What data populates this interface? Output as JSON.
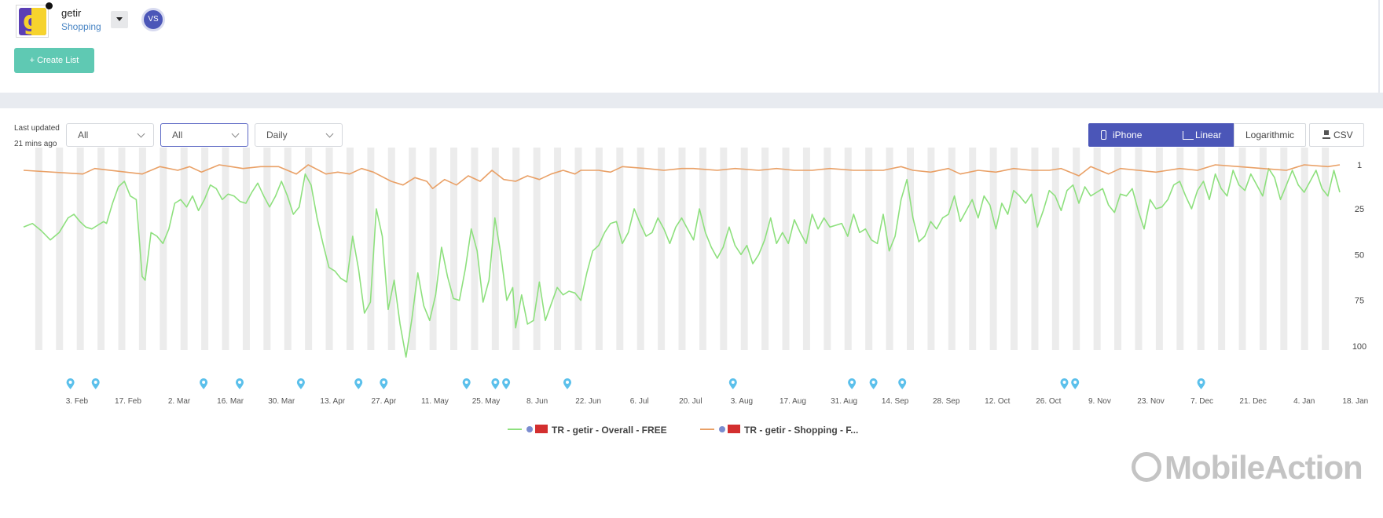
{
  "app": {
    "name": "getir",
    "category": "Shopping",
    "vs_label": "VS",
    "create_list_label": "+ Create List"
  },
  "filters": {
    "last_updated_label": "Last updated",
    "last_updated_value": "21 mins ago",
    "select_1": "All",
    "select_2": "All",
    "select_3": "Daily"
  },
  "controls": {
    "device_label": "iPhone",
    "linear_label": "Linear",
    "log_label": "Logarithmic",
    "csv_label": "CSV"
  },
  "colors": {
    "accent": "#4b56b8",
    "create": "#5fc9b3",
    "overall_line": "#8ee07e",
    "shopping_line": "#e9a066",
    "weekend_band": "#ececec",
    "marker": "#5bc0eb"
  },
  "brand": "MobileAction",
  "chart_data": {
    "type": "line",
    "y_reversed": true,
    "ylim": [
      1,
      125
    ],
    "y_ticks": [
      1,
      25,
      50,
      75,
      100
    ],
    "x_tick_labels": [
      "3. Feb",
      "17. Feb",
      "2. Mar",
      "16. Mar",
      "30. Mar",
      "13. Apr",
      "27. Apr",
      "11. May",
      "25. May",
      "8. Jun",
      "22. Jun",
      "6. Jul",
      "20. Jul",
      "3. Aug",
      "17. Aug",
      "31. Aug",
      "14. Sep",
      "28. Sep",
      "12. Oct",
      "26. Oct",
      "9. Nov",
      "23. Nov",
      "7. Dec",
      "21. Dec",
      "4. Jan",
      "18. Jan"
    ],
    "start_date": "2020-01-27",
    "n_days": 360,
    "grid": false,
    "legend_position": "bottom",
    "annotation_days": [
      13,
      20,
      50,
      60,
      77,
      93,
      100,
      123,
      131,
      134,
      151,
      197,
      230,
      236,
      244,
      289,
      292,
      327
    ],
    "series": [
      {
        "name": "TR - getir - Overall - FREE",
        "key_points": [
          [
            0,
            35
          ],
          [
            3,
            33
          ],
          [
            6,
            37
          ],
          [
            9,
            42
          ],
          [
            12,
            38
          ],
          [
            15,
            30
          ],
          [
            17,
            28
          ],
          [
            19,
            32
          ],
          [
            21,
            35
          ],
          [
            23,
            36
          ],
          [
            25,
            34
          ],
          [
            27,
            32
          ],
          [
            28,
            33
          ],
          [
            30,
            22
          ],
          [
            32,
            13
          ],
          [
            34,
            10
          ],
          [
            36,
            18
          ],
          [
            38,
            20
          ],
          [
            40,
            62
          ],
          [
            41,
            64
          ],
          [
            43,
            38
          ],
          [
            45,
            40
          ],
          [
            47,
            44
          ],
          [
            49,
            36
          ],
          [
            51,
            22
          ],
          [
            53,
            20
          ],
          [
            55,
            24
          ],
          [
            57,
            18
          ],
          [
            59,
            26
          ],
          [
            61,
            20
          ],
          [
            63,
            12
          ],
          [
            65,
            14
          ],
          [
            67,
            20
          ],
          [
            69,
            17
          ],
          [
            71,
            18
          ],
          [
            73,
            21
          ],
          [
            75,
            22
          ],
          [
            77,
            16
          ],
          [
            79,
            11
          ],
          [
            81,
            18
          ],
          [
            83,
            24
          ],
          [
            85,
            18
          ],
          [
            87,
            10
          ],
          [
            89,
            18
          ],
          [
            91,
            28
          ],
          [
            93,
            24
          ],
          [
            95,
            6
          ],
          [
            97,
            12
          ],
          [
            99,
            30
          ],
          [
            101,
            44
          ],
          [
            103,
            57
          ],
          [
            105,
            59
          ],
          [
            107,
            63
          ],
          [
            109,
            65
          ],
          [
            111,
            40
          ],
          [
            113,
            58
          ],
          [
            115,
            82
          ],
          [
            117,
            76
          ],
          [
            119,
            25
          ],
          [
            121,
            40
          ],
          [
            123,
            80
          ],
          [
            125,
            64
          ],
          [
            127,
            88
          ],
          [
            129,
            106
          ],
          [
            131,
            85
          ],
          [
            133,
            60
          ],
          [
            135,
            78
          ],
          [
            137,
            86
          ],
          [
            139,
            72
          ],
          [
            141,
            46
          ],
          [
            143,
            62
          ],
          [
            145,
            74
          ],
          [
            147,
            75
          ],
          [
            149,
            58
          ],
          [
            151,
            36
          ],
          [
            153,
            48
          ],
          [
            155,
            76
          ],
          [
            157,
            64
          ],
          [
            159,
            30
          ],
          [
            161,
            50
          ],
          [
            163,
            75
          ],
          [
            165,
            68
          ],
          [
            166,
            90
          ],
          [
            168,
            72
          ],
          [
            170,
            88
          ],
          [
            172,
            86
          ],
          [
            174,
            65
          ],
          [
            176,
            86
          ],
          [
            178,
            77
          ],
          [
            180,
            68
          ],
          [
            182,
            72
          ],
          [
            184,
            70
          ],
          [
            186,
            71
          ],
          [
            188,
            75
          ],
          [
            190,
            60
          ],
          [
            192,
            48
          ],
          [
            194,
            45
          ],
          [
            196,
            38
          ],
          [
            198,
            33
          ],
          [
            200,
            32
          ],
          [
            202,
            44
          ],
          [
            204,
            38
          ],
          [
            206,
            25
          ],
          [
            208,
            33
          ],
          [
            210,
            40
          ],
          [
            212,
            38
          ],
          [
            214,
            30
          ],
          [
            216,
            36
          ],
          [
            218,
            44
          ],
          [
            220,
            35
          ],
          [
            222,
            30
          ],
          [
            224,
            36
          ],
          [
            226,
            42
          ],
          [
            228,
            25
          ],
          [
            230,
            38
          ],
          [
            232,
            46
          ],
          [
            234,
            52
          ],
          [
            236,
            46
          ],
          [
            238,
            35
          ],
          [
            240,
            45
          ],
          [
            242,
            50
          ],
          [
            244,
            45
          ],
          [
            246,
            55
          ],
          [
            248,
            50
          ],
          [
            250,
            42
          ],
          [
            252,
            30
          ],
          [
            254,
            44
          ],
          [
            256,
            38
          ],
          [
            258,
            44
          ],
          [
            260,
            31
          ],
          [
            262,
            38
          ],
          [
            264,
            44
          ],
          [
            266,
            28
          ],
          [
            268,
            36
          ],
          [
            270,
            30
          ],
          [
            272,
            35
          ],
          [
            274,
            34
          ],
          [
            276,
            33
          ],
          [
            278,
            40
          ],
          [
            280,
            28
          ],
          [
            282,
            38
          ],
          [
            284,
            36
          ],
          [
            286,
            42
          ],
          [
            288,
            44
          ],
          [
            290,
            28
          ],
          [
            292,
            48
          ],
          [
            294,
            40
          ],
          [
            296,
            20
          ],
          [
            298,
            9
          ],
          [
            300,
            30
          ],
          [
            302,
            43
          ],
          [
            304,
            40
          ],
          [
            306,
            32
          ],
          [
            308,
            36
          ],
          [
            310,
            30
          ],
          [
            312,
            28
          ],
          [
            314,
            18
          ],
          [
            316,
            32
          ],
          [
            318,
            26
          ],
          [
            320,
            20
          ],
          [
            322,
            30
          ],
          [
            324,
            18
          ],
          [
            326,
            23
          ],
          [
            328,
            36
          ],
          [
            330,
            22
          ],
          [
            332,
            28
          ],
          [
            334,
            15
          ],
          [
            336,
            18
          ],
          [
            338,
            22
          ],
          [
            340,
            17
          ],
          [
            342,
            35
          ],
          [
            344,
            26
          ],
          [
            346,
            15
          ],
          [
            348,
            18
          ],
          [
            350,
            26
          ],
          [
            352,
            15
          ],
          [
            354,
            12
          ],
          [
            356,
            22
          ],
          [
            358,
            13
          ],
          [
            360,
            18
          ],
          [
            362,
            16
          ],
          [
            364,
            14
          ],
          [
            366,
            23
          ],
          [
            368,
            27
          ],
          [
            370,
            17
          ],
          [
            372,
            18
          ],
          [
            374,
            14
          ],
          [
            376,
            26
          ],
          [
            378,
            36
          ],
          [
            380,
            20
          ],
          [
            382,
            25
          ],
          [
            384,
            24
          ],
          [
            386,
            20
          ],
          [
            388,
            12
          ],
          [
            390,
            10
          ],
          [
            392,
            18
          ],
          [
            394,
            25
          ],
          [
            396,
            15
          ],
          [
            398,
            10
          ],
          [
            400,
            20
          ],
          [
            402,
            6
          ],
          [
            404,
            14
          ],
          [
            406,
            18
          ],
          [
            408,
            4
          ],
          [
            410,
            12
          ],
          [
            412,
            15
          ],
          [
            414,
            6
          ],
          [
            416,
            12
          ],
          [
            418,
            18
          ],
          [
            420,
            3
          ],
          [
            422,
            8
          ],
          [
            424,
            20
          ],
          [
            426,
            12
          ],
          [
            428,
            4
          ],
          [
            430,
            12
          ],
          [
            432,
            16
          ],
          [
            434,
            10
          ],
          [
            436,
            4
          ],
          [
            438,
            14
          ],
          [
            440,
            18
          ],
          [
            442,
            4
          ],
          [
            444,
            16
          ]
        ],
        "scale_note": "day index relative to start_date over 446 samples"
      },
      {
        "name": "TR - getir - Shopping - F...",
        "key_points": [
          [
            0,
            4
          ],
          [
            20,
            6
          ],
          [
            24,
            3
          ],
          [
            40,
            6
          ],
          [
            46,
            2
          ],
          [
            52,
            4
          ],
          [
            56,
            2
          ],
          [
            60,
            5
          ],
          [
            66,
            1
          ],
          [
            70,
            2
          ],
          [
            74,
            3
          ],
          [
            80,
            2
          ],
          [
            86,
            2
          ],
          [
            92,
            6
          ],
          [
            96,
            1
          ],
          [
            102,
            6
          ],
          [
            106,
            5
          ],
          [
            110,
            6
          ],
          [
            114,
            3
          ],
          [
            118,
            5
          ],
          [
            124,
            10
          ],
          [
            128,
            12
          ],
          [
            132,
            8
          ],
          [
            136,
            10
          ],
          [
            138,
            14
          ],
          [
            142,
            9
          ],
          [
            146,
            12
          ],
          [
            150,
            7
          ],
          [
            154,
            10
          ],
          [
            158,
            4
          ],
          [
            162,
            9
          ],
          [
            166,
            10
          ],
          [
            170,
            7
          ],
          [
            174,
            9
          ],
          [
            178,
            6
          ],
          [
            182,
            4
          ],
          [
            186,
            6
          ],
          [
            188,
            4
          ],
          [
            194,
            4
          ],
          [
            198,
            5
          ],
          [
            202,
            2
          ],
          [
            210,
            3
          ],
          [
            216,
            4
          ],
          [
            222,
            3
          ],
          [
            226,
            3
          ],
          [
            234,
            4
          ],
          [
            240,
            3
          ],
          [
            248,
            4
          ],
          [
            254,
            3
          ],
          [
            260,
            4
          ],
          [
            266,
            4
          ],
          [
            272,
            3
          ],
          [
            280,
            4
          ],
          [
            290,
            4
          ],
          [
            296,
            2
          ],
          [
            300,
            4
          ],
          [
            306,
            5
          ],
          [
            312,
            3
          ],
          [
            316,
            6
          ],
          [
            322,
            4
          ],
          [
            328,
            5
          ],
          [
            334,
            3
          ],
          [
            340,
            4
          ],
          [
            346,
            4
          ],
          [
            350,
            3
          ],
          [
            356,
            7
          ],
          [
            360,
            2
          ],
          [
            366,
            6
          ],
          [
            370,
            3
          ],
          [
            376,
            4
          ],
          [
            382,
            5
          ],
          [
            386,
            4
          ],
          [
            390,
            3
          ],
          [
            396,
            4
          ],
          [
            402,
            1
          ],
          [
            410,
            2
          ],
          [
            418,
            3
          ],
          [
            426,
            4
          ],
          [
            432,
            1
          ],
          [
            440,
            2
          ],
          [
            444,
            1
          ]
        ]
      }
    ]
  }
}
